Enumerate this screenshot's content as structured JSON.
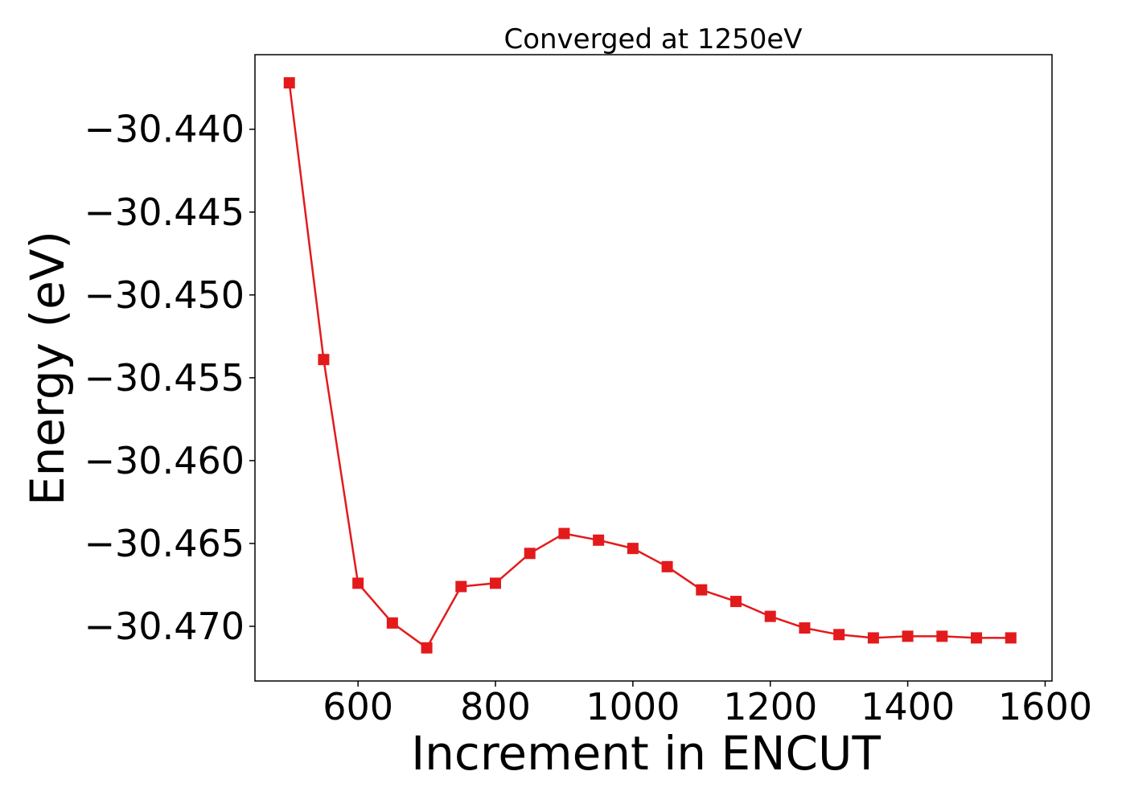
{
  "chart_data": {
    "type": "line",
    "title": "Converged at 1250eV",
    "xlabel": "Increment in ENCUT",
    "ylabel": "Energy (eV)",
    "xlim": [
      450,
      1610
    ],
    "ylim": [
      -30.4733,
      -30.4355
    ],
    "xticks": [
      600,
      800,
      1000,
      1200,
      1400,
      1600
    ],
    "yticks": [
      -30.44,
      -30.445,
      -30.45,
      -30.455,
      -30.46,
      -30.465,
      -30.47
    ],
    "ytick_labels": [
      "−30.440",
      "−30.445",
      "−30.450",
      "−30.455",
      "−30.460",
      "−30.465",
      "−30.470"
    ],
    "grid": false,
    "series": [
      {
        "color": "#e31a1c",
        "marker": "square",
        "x": [
          500,
          550,
          600,
          650,
          700,
          750,
          800,
          850,
          900,
          950,
          1000,
          1050,
          1100,
          1150,
          1200,
          1250,
          1300,
          1350,
          1400,
          1450,
          1500,
          1550
        ],
        "y": [
          -30.4372,
          -30.4539,
          -30.4674,
          -30.4698,
          -30.4713,
          -30.4676,
          -30.4674,
          -30.4656,
          -30.4644,
          -30.4648,
          -30.4653,
          -30.4664,
          -30.4678,
          -30.4685,
          -30.4694,
          -30.4701,
          -30.4705,
          -30.4707,
          -30.4706,
          -30.4706,
          -30.4707,
          -30.4707
        ]
      }
    ]
  }
}
